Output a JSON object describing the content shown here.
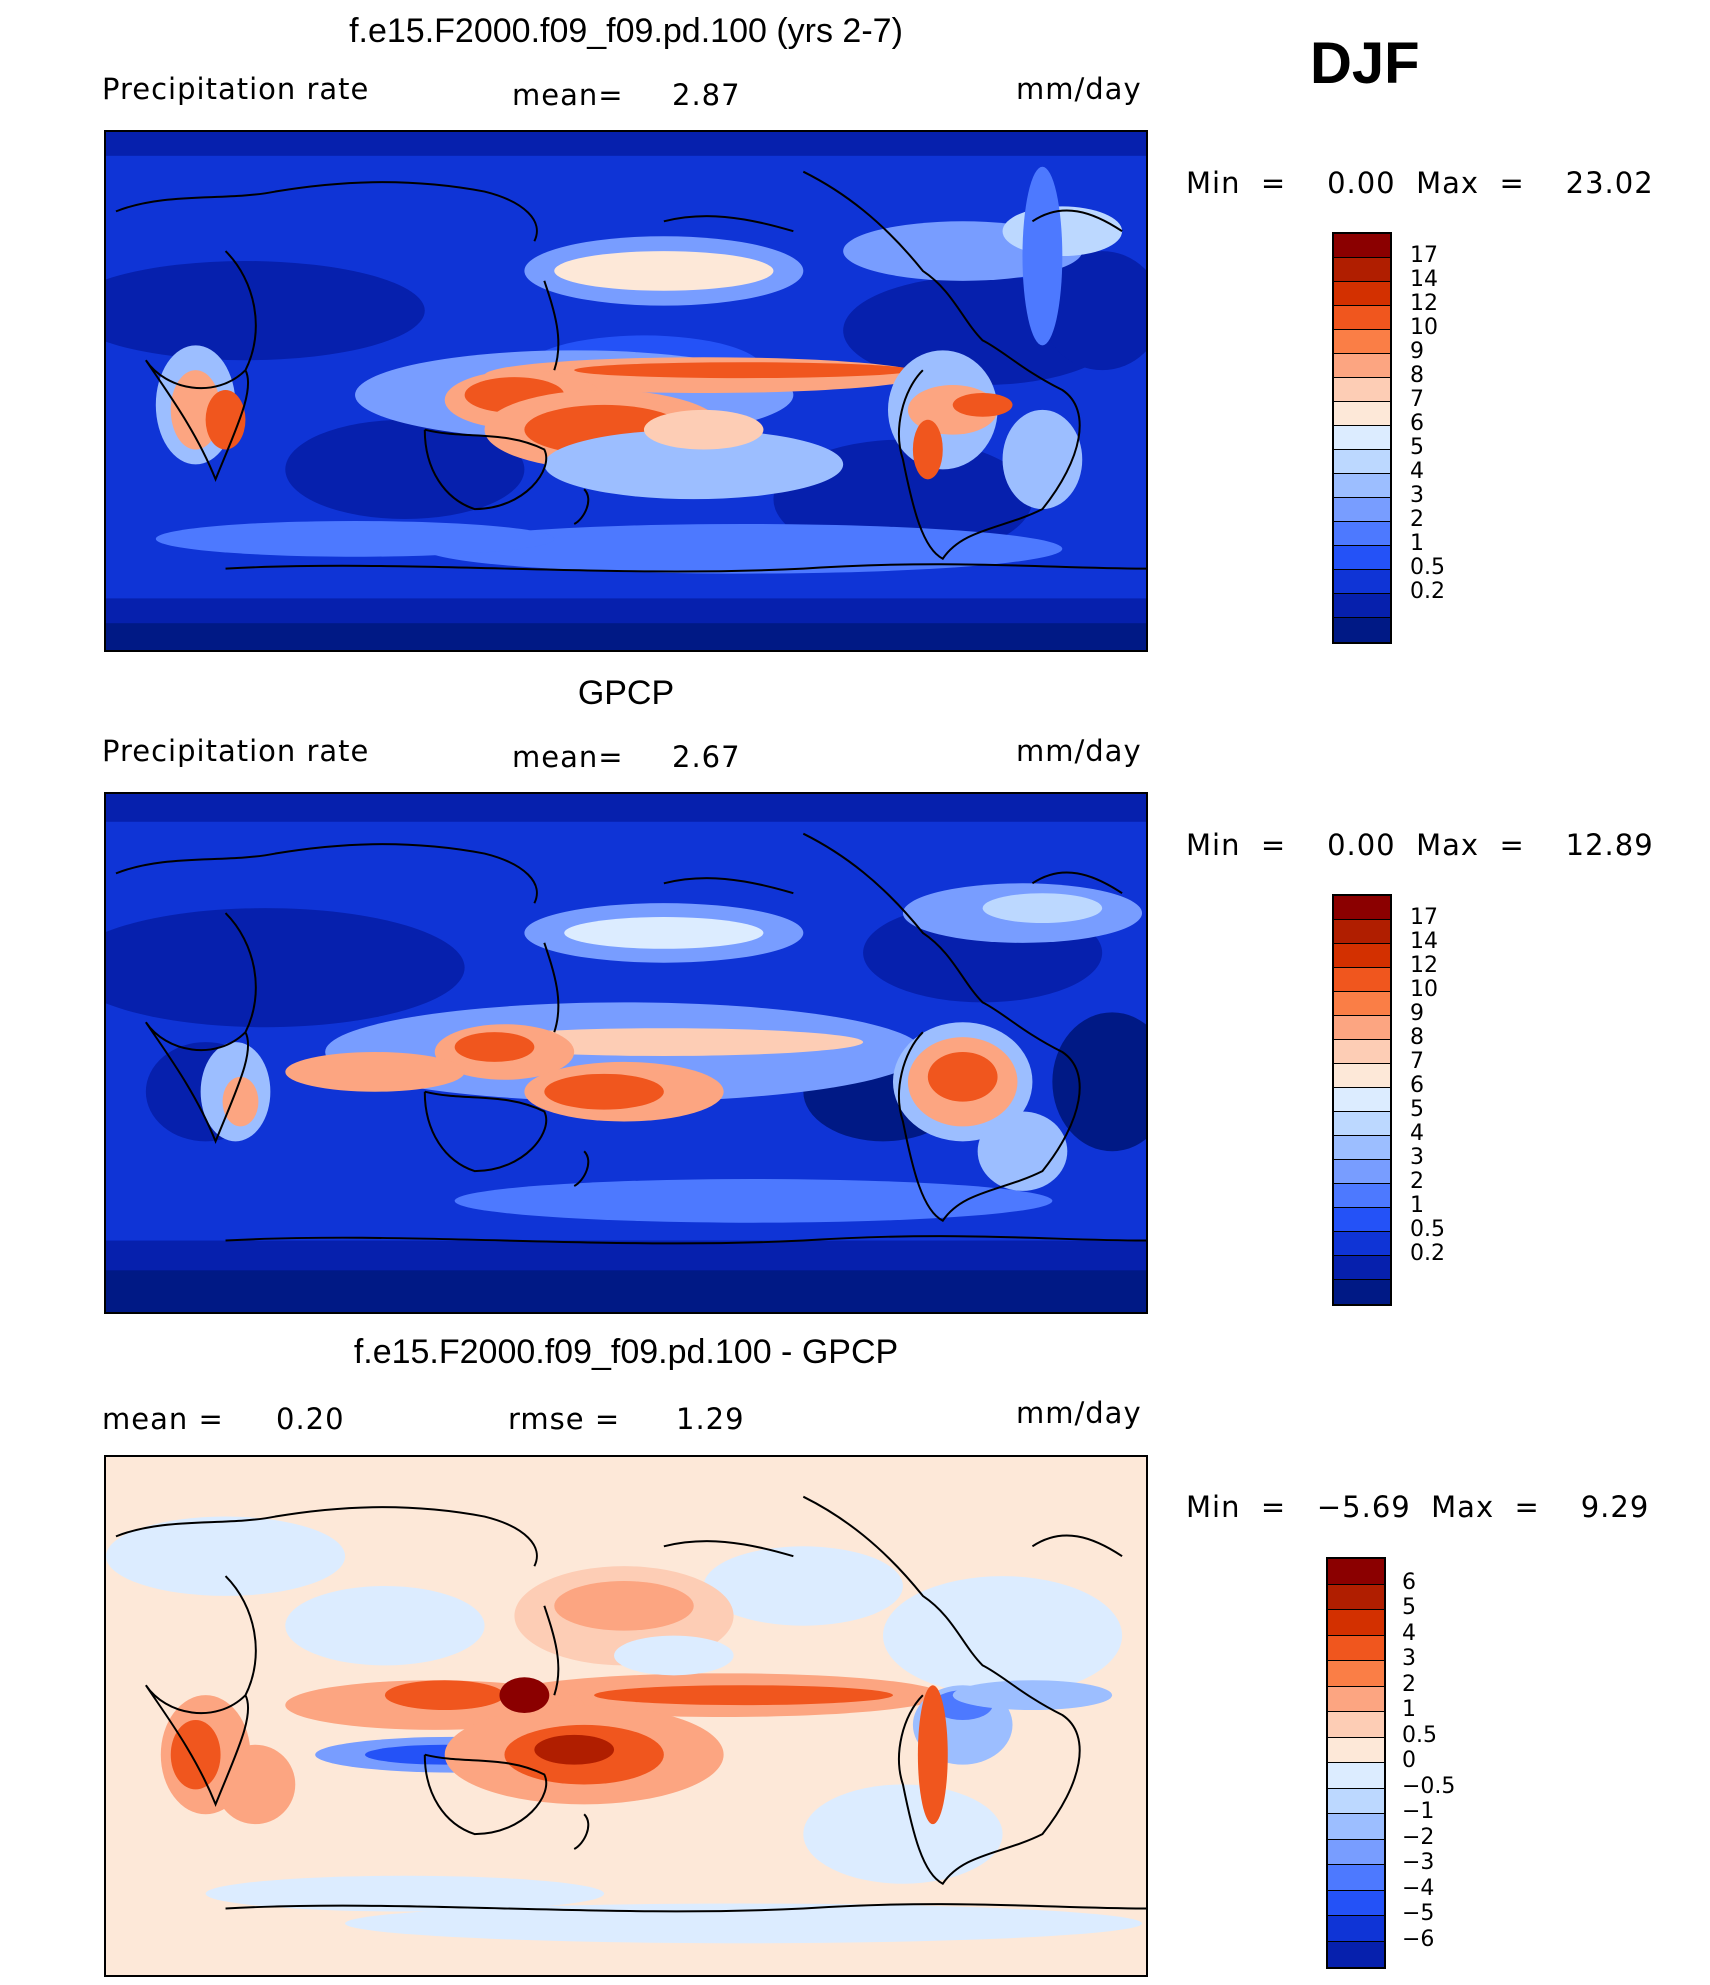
{
  "season_label": "DJF",
  "panels": [
    {
      "id": "model",
      "title": "f.e15.F2000.f09_f09.pd.100 (yrs 2-7)",
      "left_label": "Precipitation  rate",
      "center_label": "mean=",
      "center_value": "2.87",
      "units": "mm/day",
      "stats": "Min  =    0.00  Max  =    23.02"
    },
    {
      "id": "obs",
      "title": "GPCP",
      "left_label": "Precipitation  rate",
      "center_label": "mean=",
      "center_value": "2.67",
      "units": "mm/day",
      "stats": "Min  =    0.00  Max  =    12.89"
    },
    {
      "id": "diff",
      "title": "f.e15.F2000.f09_f09.pd.100 - GPCP",
      "left_label": "mean  =",
      "left_value": "0.20",
      "center_label": "rmse  =",
      "center_value": "1.29",
      "units": "mm/day",
      "stats": "Min  =   −5.69  Max  =    9.29"
    }
  ],
  "colorbars": {
    "precip": {
      "colors": [
        "#8b0000",
        "#b01e00",
        "#d33000",
        "#f0561e",
        "#fa7e46",
        "#fca581",
        "#fdcdb5",
        "#fde8d8",
        "#dcecff",
        "#bcd8ff",
        "#9cbeff",
        "#789dff",
        "#4d79ff",
        "#2452f7",
        "#0f34d6",
        "#0620ad",
        "#001985"
      ],
      "labels": [
        "17",
        "14",
        "12",
        "10",
        "9",
        "8",
        "7",
        "6",
        "5",
        "4",
        "3",
        "2",
        "1",
        "0.5",
        "0.2"
      ]
    },
    "diff": {
      "colors": [
        "#8b0000",
        "#b01e00",
        "#d33000",
        "#f0561e",
        "#fa7e46",
        "#fca581",
        "#fdcdb5",
        "#fde8d8",
        "#dcecff",
        "#bcd8ff",
        "#9cbeff",
        "#789dff",
        "#4d79ff",
        "#2452f7",
        "#0f34d6",
        "#0620ad"
      ],
      "labels": [
        "6",
        "5",
        "4",
        "3",
        "2",
        "1",
        "0.5",
        "0",
        "−0.5",
        "−1",
        "−2",
        "−3",
        "−4",
        "−5",
        "−6"
      ]
    }
  }
}
